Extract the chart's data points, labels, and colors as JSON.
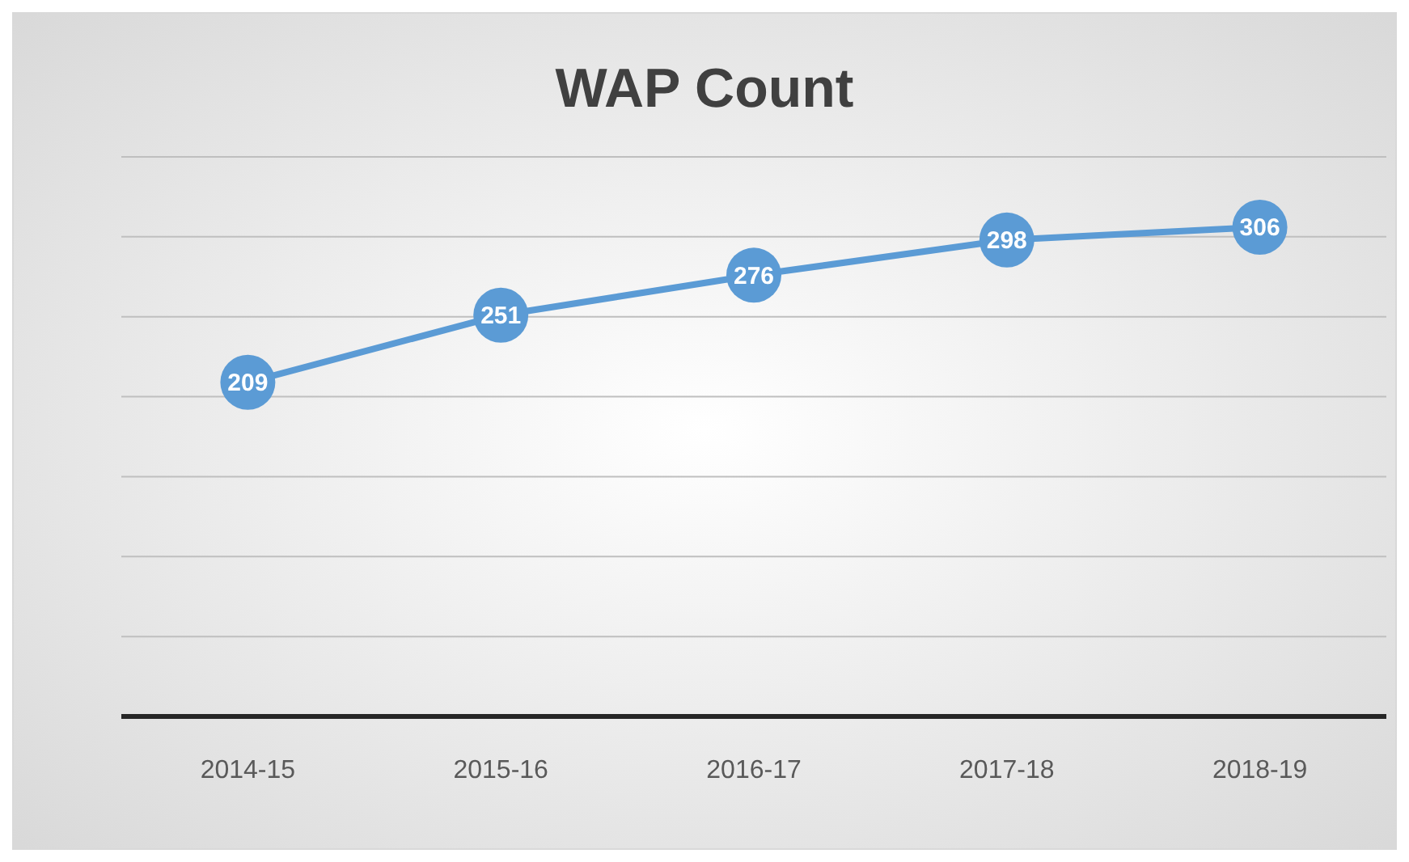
{
  "chart_data": {
    "type": "line",
    "title": "WAP Count",
    "categories": [
      "2014-15",
      "2015-16",
      "2016-17",
      "2017-18",
      "2018-19"
    ],
    "series": [
      {
        "color": "#5b9bd5",
        "values": [
          209,
          251,
          276,
          298,
          306
        ]
      }
    ],
    "ylim": [
      0,
      350
    ],
    "yticks": [
      {
        "value": 0,
        "label": null
      },
      {
        "value": 50,
        "label": null
      },
      {
        "value": 100,
        "label": null
      },
      {
        "value": 150,
        "label": null
      },
      {
        "value": 200,
        "label": null
      },
      {
        "value": 250,
        "label": null
      },
      {
        "value": 300,
        "label": null
      },
      {
        "value": 350,
        "label": null
      }
    ],
    "grid": "y",
    "tick_labels": "x",
    "marker": "circle",
    "data_labels": true
  }
}
